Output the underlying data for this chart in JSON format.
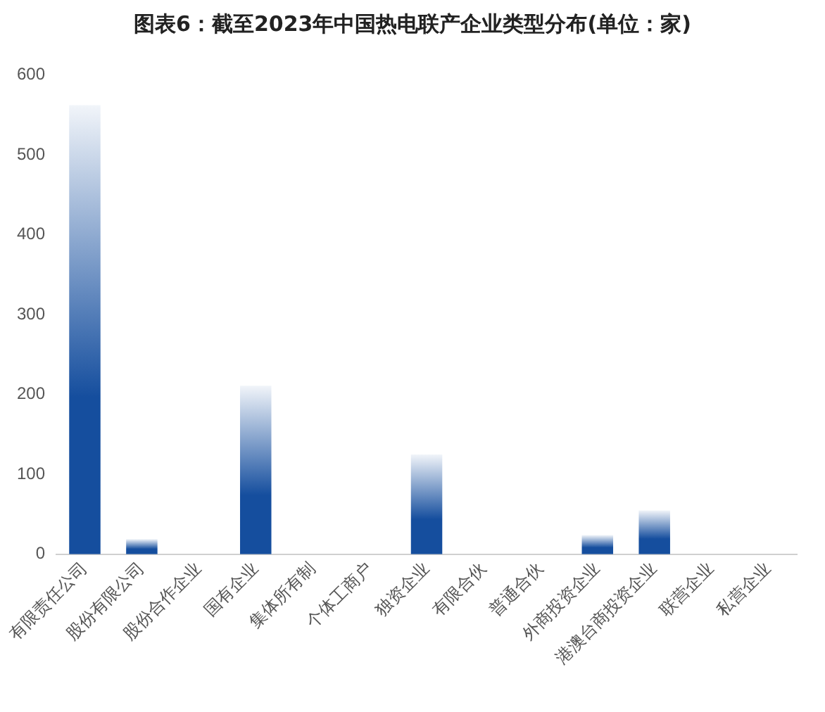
{
  "chart_data": {
    "type": "bar",
    "title": "图表6：截至2023年中国热电联产企业类型分布(单位：家)",
    "categories": [
      "有限责任公司",
      "股份有限公司",
      "股份合作企业",
      "国有企业",
      "集体所有制",
      "个体工商户",
      "独资企业",
      "有限合伙",
      "普通合伙",
      "外商投资企业",
      "港澳台商投资企业",
      "联营企业",
      "私营企业"
    ],
    "values": [
      562,
      19,
      0,
      211,
      0,
      0,
      125,
      0,
      0,
      24,
      55,
      0,
      0
    ],
    "color": "#154e9e",
    "ylim": [
      0,
      600
    ],
    "yticks": [
      0,
      100,
      200,
      300,
      400,
      500,
      600
    ],
    "grid": false,
    "legend": false
  }
}
